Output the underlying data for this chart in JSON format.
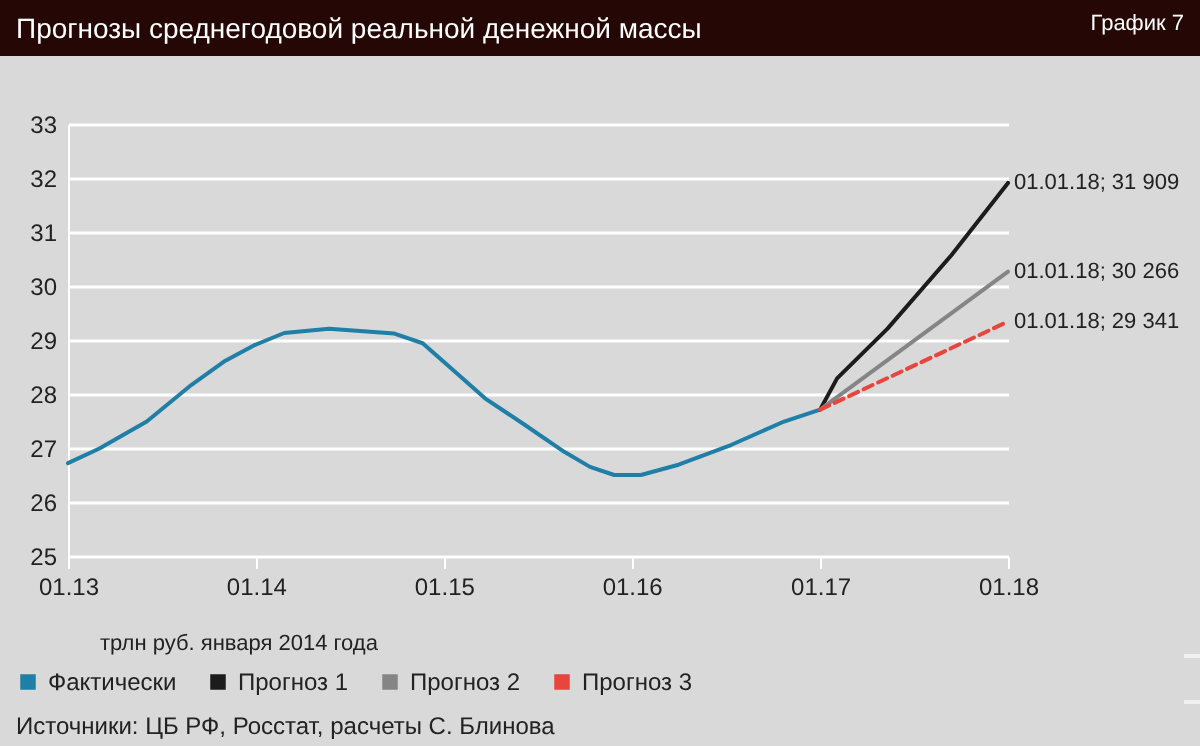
{
  "chart_data": {
    "type": "line",
    "title": "Прогнозы среднегодовой реальной денежной массы",
    "xlim": [
      "2013-01-01",
      "2018-01-01"
    ],
    "xticks": [
      {
        "value": "2013-01-01",
        "label": "01.13"
      },
      {
        "value": "2014-01-01",
        "label": "01.14"
      },
      {
        "value": "2015-01-01",
        "label": "01.15"
      },
      {
        "value": "2016-01-01",
        "label": "01.16"
      },
      {
        "value": "2017-01-01",
        "label": "01.17"
      },
      {
        "value": "2018-01-01",
        "label": "01.18"
      }
    ],
    "ylim": [
      25,
      33
    ],
    "yticks": [
      25,
      26,
      27,
      28,
      29,
      30,
      31,
      32,
      33
    ],
    "grid": "y",
    "legend": "bottom left",
    "marker": "none",
    "series": [
      {
        "name": "Фактически",
        "color": "#1f7fa6",
        "line_style": "solid",
        "x": [
          "2013-01-01",
          "2013-03-03",
          "2013-06-03",
          "2013-08-29",
          "2013-10-31",
          "2013-12-28",
          "2014-02-25",
          "2014-05-23",
          "2014-09-27",
          "2014-11-21",
          "2015-01-30",
          "2015-03-22",
          "2015-06-07",
          "2015-08-23",
          "2015-10-12",
          "2015-11-28",
          "2016-01-19",
          "2016-04-01",
          "2016-07-13",
          "2016-10-23",
          "2017-01-01"
        ],
        "values": [
          26.72,
          26.99,
          27.49,
          28.17,
          28.6,
          28.9,
          29.13,
          29.21,
          29.12,
          28.94,
          28.35,
          27.92,
          27.43,
          26.93,
          26.65,
          26.5,
          26.5,
          26.69,
          27.06,
          27.49,
          27.71
        ]
      },
      {
        "name": "Прогноз 1",
        "color": "#1c1c1c",
        "line_style": "solid",
        "x": [
          "2017-01-01",
          "2017-02-03",
          "2017-05-12",
          "2017-09-13",
          "2018-01-01"
        ],
        "values": [
          27.71,
          28.29,
          29.21,
          30.57,
          31.909
        ]
      },
      {
        "name": "Прогноз 2",
        "color": "#858585",
        "line_style": "solid",
        "x": [
          "2017-01-01",
          "2018-01-01"
        ],
        "values": [
          27.71,
          30.266
        ]
      },
      {
        "name": "Прогноз 3",
        "color": "#e8453c",
        "line_style": "dashed",
        "x": [
          "2017-01-01",
          "2018-01-01"
        ],
        "values": [
          27.71,
          29.341
        ]
      }
    ],
    "annotations": [
      "График 7",
      {
        "text": "01.01.18; 31 909",
        "x": "2018-01-01",
        "y": 31.909
      },
      {
        "text": "01.01.18; 30 266",
        "x": "2018-01-01",
        "y": 30.266
      },
      {
        "text": "01.01.18; 29 341",
        "x": "2018-01-01",
        "y": 29.341
      },
      "трлн руб. января 2014 года",
      "Источники: ЦБ РФ, Росстат, расчеты С. Блинова"
    ]
  }
}
